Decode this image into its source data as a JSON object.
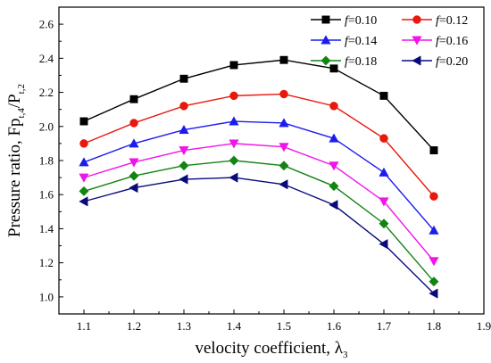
{
  "chart_data": {
    "type": "line",
    "title": "",
    "xlabel": "velocity coefficient,  λ",
    "xlabel_sub": "3",
    "ylabel": "Pressure ratio, Fp",
    "ylabel_sub1": "t,4",
    "ylabel_mid": "/P",
    "ylabel_sub2": "t,2",
    "xlim": [
      1.05,
      1.9
    ],
    "ylim": [
      0.9,
      2.7
    ],
    "xticks": [
      1.1,
      1.2,
      1.3,
      1.4,
      1.5,
      1.6,
      1.7,
      1.8,
      1.9
    ],
    "yticks": [
      1.0,
      1.2,
      1.4,
      1.6,
      1.8,
      2.0,
      2.2,
      2.4,
      2.6
    ],
    "legend_position": "top-right",
    "legend_prefix": "f",
    "x": [
      1.1,
      1.2,
      1.3,
      1.4,
      1.5,
      1.6,
      1.7,
      1.8
    ],
    "series": [
      {
        "name": "=0.10",
        "color": "#000000",
        "marker": "square",
        "values": [
          2.03,
          2.16,
          2.28,
          2.36,
          2.39,
          2.34,
          2.18,
          1.86
        ]
      },
      {
        "name": "=0.12",
        "color": "#e8180c",
        "marker": "circle",
        "values": [
          1.9,
          2.02,
          2.12,
          2.18,
          2.19,
          2.12,
          1.93,
          1.59
        ]
      },
      {
        "name": "=0.14",
        "color": "#1c1cf0",
        "marker": "triangle-up",
        "values": [
          1.79,
          1.9,
          1.98,
          2.03,
          2.02,
          1.93,
          1.73,
          1.39
        ]
      },
      {
        "name": "=0.16",
        "color": "#f014e8",
        "marker": "triangle-down",
        "values": [
          1.7,
          1.79,
          1.86,
          1.9,
          1.88,
          1.77,
          1.56,
          1.21
        ]
      },
      {
        "name": "=0.18",
        "color": "#128412",
        "marker": "diamond",
        "values": [
          1.62,
          1.71,
          1.77,
          1.8,
          1.77,
          1.65,
          1.43,
          1.09
        ]
      },
      {
        "name": "=0.20",
        "color": "#0a0a7a",
        "marker": "triangle-left",
        "values": [
          1.56,
          1.64,
          1.69,
          1.7,
          1.66,
          1.54,
          1.31,
          1.02
        ]
      }
    ]
  }
}
